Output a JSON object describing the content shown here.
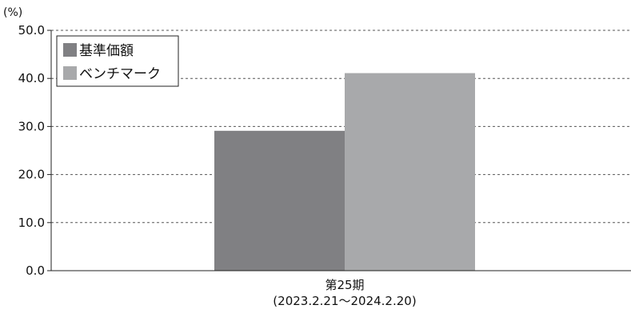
{
  "chart_data": {
    "type": "bar",
    "unit_label": "(%)",
    "title": "",
    "xlabel": "",
    "ylabel": "",
    "categories": [
      "第25期"
    ],
    "category_sublabels": [
      "(2023.2.21～2024.2.20)"
    ],
    "series": [
      {
        "name": "基準価額",
        "values": [
          29.1
        ],
        "color": "#808083"
      },
      {
        "name": "ベンチマーク",
        "values": [
          41.1
        ],
        "color": "#a8a9ab"
      }
    ],
    "ylim": [
      0,
      50
    ],
    "yticks": [
      "0.0",
      "10.0",
      "20.0",
      "30.0",
      "40.0",
      "50.0"
    ],
    "grid": "dashed horizontal",
    "legend_position": "top-left"
  }
}
